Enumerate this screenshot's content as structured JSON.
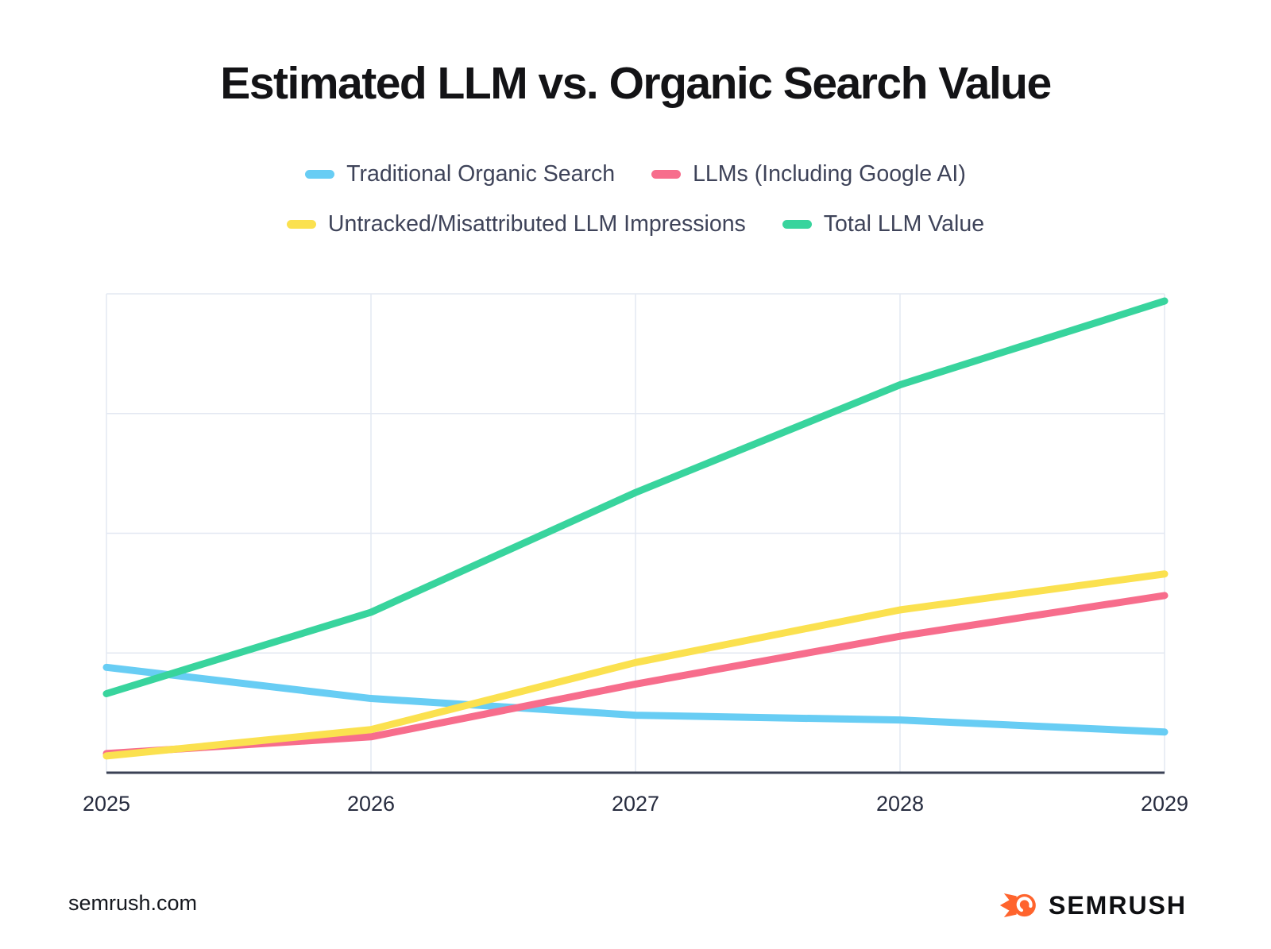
{
  "title": "Estimated LLM vs. Organic Search Value",
  "footer": {
    "site": "semrush.com",
    "brand": "SEMRUSH"
  },
  "brand_colors": {
    "flame_orange": "#FF642D",
    "axis_line": "#3A4154",
    "gridline": "#E3E8F2"
  },
  "chart_data": {
    "type": "line",
    "title": "Estimated LLM vs. Organic Search Value",
    "x": [
      2025,
      2026,
      2027,
      2028,
      2029
    ],
    "xlabel": "",
    "ylabel": "",
    "ylim": [
      0,
      100
    ],
    "y_gridline_step": 25,
    "y_axis_labels_visible": false,
    "grid": true,
    "legend_position": "top",
    "line_width": 9,
    "series": [
      {
        "name": "Traditional Organic Search",
        "color": "#68CDF4",
        "values": [
          22,
          15.5,
          12,
          11,
          8.5
        ]
      },
      {
        "name": "LLMs (Including Google AI)",
        "color": "#F76D8C",
        "values": [
          4,
          7.5,
          18.5,
          28.5,
          37
        ]
      },
      {
        "name": "Untracked/Misattributed LLM Impressions",
        "color": "#FBE14F",
        "values": [
          3.5,
          9,
          23,
          34,
          41.5
        ]
      },
      {
        "name": "Total LLM Value",
        "color": "#38D49D",
        "values": [
          16.5,
          33.5,
          58.5,
          81,
          98.5
        ]
      }
    ]
  }
}
